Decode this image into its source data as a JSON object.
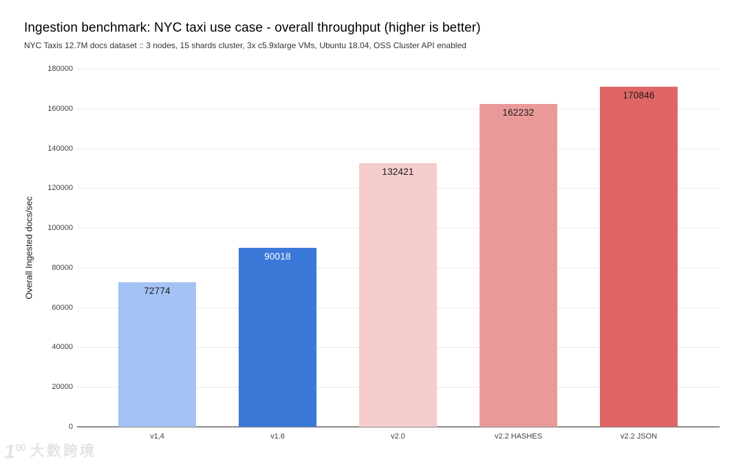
{
  "chart_data": {
    "type": "bar",
    "title": "Ingestion benchmark: NYC taxi use case - overall throughput (higher is better)",
    "subtitle": "NYC Taxis 12.7M docs dataset :: 3 nodes, 15 shards cluster, 3x c5.9xlarge VMs, Ubuntu 18.04, OSS Cluster API enabled",
    "categories": [
      "v1,4",
      "v1.6",
      "v2.0",
      "v2.2 HASHES",
      "v2.2 JSON"
    ],
    "values": [
      72774,
      90018,
      132421,
      162232,
      170846
    ],
    "bar_colors": [
      "#a4c2f4",
      "#3c78d8",
      "#f4cccc",
      "#ea9999",
      "#e06666"
    ],
    "value_label_colors": [
      "#1a1a1a",
      "#ffffff",
      "#1a1a1a",
      "#1a1a1a",
      "#1a1a1a"
    ],
    "value_labels_position": "inside-top",
    "xlabel": "",
    "ylabel": "Overall Ingested docs/sec",
    "ylim": [
      0,
      180000
    ],
    "yticks": [
      0,
      20000,
      40000,
      60000,
      80000,
      100000,
      120000,
      140000,
      160000,
      180000
    ],
    "grid": true,
    "legend": "none",
    "background": "#ffffff",
    "gridline_color": "#e8e8e8",
    "baseline_color": "#8a8a8a"
  },
  "watermark": {
    "logo_digit": "1",
    "logo_superscript": "00",
    "text": "大数跨境"
  }
}
